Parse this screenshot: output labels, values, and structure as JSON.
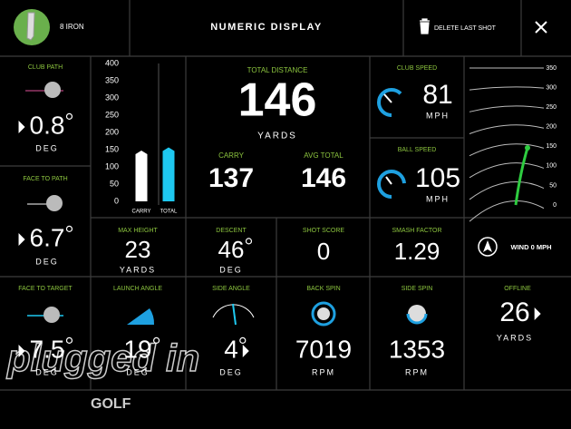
{
  "header": {
    "club": "8 IRON",
    "title": "NUMERIC DISPLAY",
    "action": "DELETE LAST SHOT"
  },
  "tiles": {
    "club_path": {
      "label": "CLUB PATH",
      "value": 0.8,
      "unit": "DEG"
    },
    "face_to_path": {
      "label": "FACE TO PATH",
      "value": 6.7,
      "unit": "DEG"
    },
    "face_to_target": {
      "label": "FACE TO TARGET",
      "value": 7.5,
      "unit": "DEG"
    },
    "launch_angle": {
      "label": "LAUNCH ANGLE",
      "value": 19,
      "unit": "DEG"
    },
    "side_angle": {
      "label": "SIDE ANGLE",
      "value": 4,
      "unit": "DEG"
    },
    "back_spin": {
      "label": "BACK SPIN",
      "value": 7019,
      "unit": "RPM"
    },
    "side_spin": {
      "label": "SIDE SPIN",
      "value": 1353,
      "unit": "RPM"
    },
    "offline": {
      "label": "OFFLINE",
      "value": 26,
      "unit": "YARDS"
    },
    "max_height": {
      "label": "MAX HEIGHT",
      "value": 23,
      "unit": "YARDS"
    },
    "descent": {
      "label": "DESCENT",
      "value": 46,
      "unit": "DEG"
    },
    "shot_score": {
      "label": "SHOT SCORE",
      "value": 0
    },
    "smash_factor": {
      "label": "SMASH FACTOR",
      "value": 1.29
    },
    "club_speed": {
      "label": "CLUB SPEED",
      "value": 81,
      "unit": "MPH"
    },
    "ball_speed": {
      "label": "BALL SPEED",
      "value": 105,
      "unit": "MPH"
    }
  },
  "total": {
    "label": "TOTAL DISTANCE",
    "value": 146,
    "unit": "YARDS",
    "carry_label": "CARRY",
    "carry": 137,
    "avg_label": "AVG TOTAL",
    "avg": 146
  },
  "distance_chart": {
    "type": "bar",
    "categories": [
      "CARRY",
      "TOTAL"
    ],
    "values": [
      137,
      146
    ],
    "colors": [
      "#ffffff",
      "#1ec8f0"
    ],
    "ylim": [
      0,
      400
    ],
    "yticks": [
      0,
      50,
      100,
      150,
      200,
      250,
      300,
      350,
      400
    ]
  },
  "trajectory": {
    "ticks": [
      0,
      50,
      100,
      150,
      200,
      250,
      300,
      350
    ],
    "range": [
      0,
      350
    ]
  },
  "wind": "WIND 0 MPH",
  "watermark": {
    "text": "plugged in",
    "brand": "GOLF"
  }
}
